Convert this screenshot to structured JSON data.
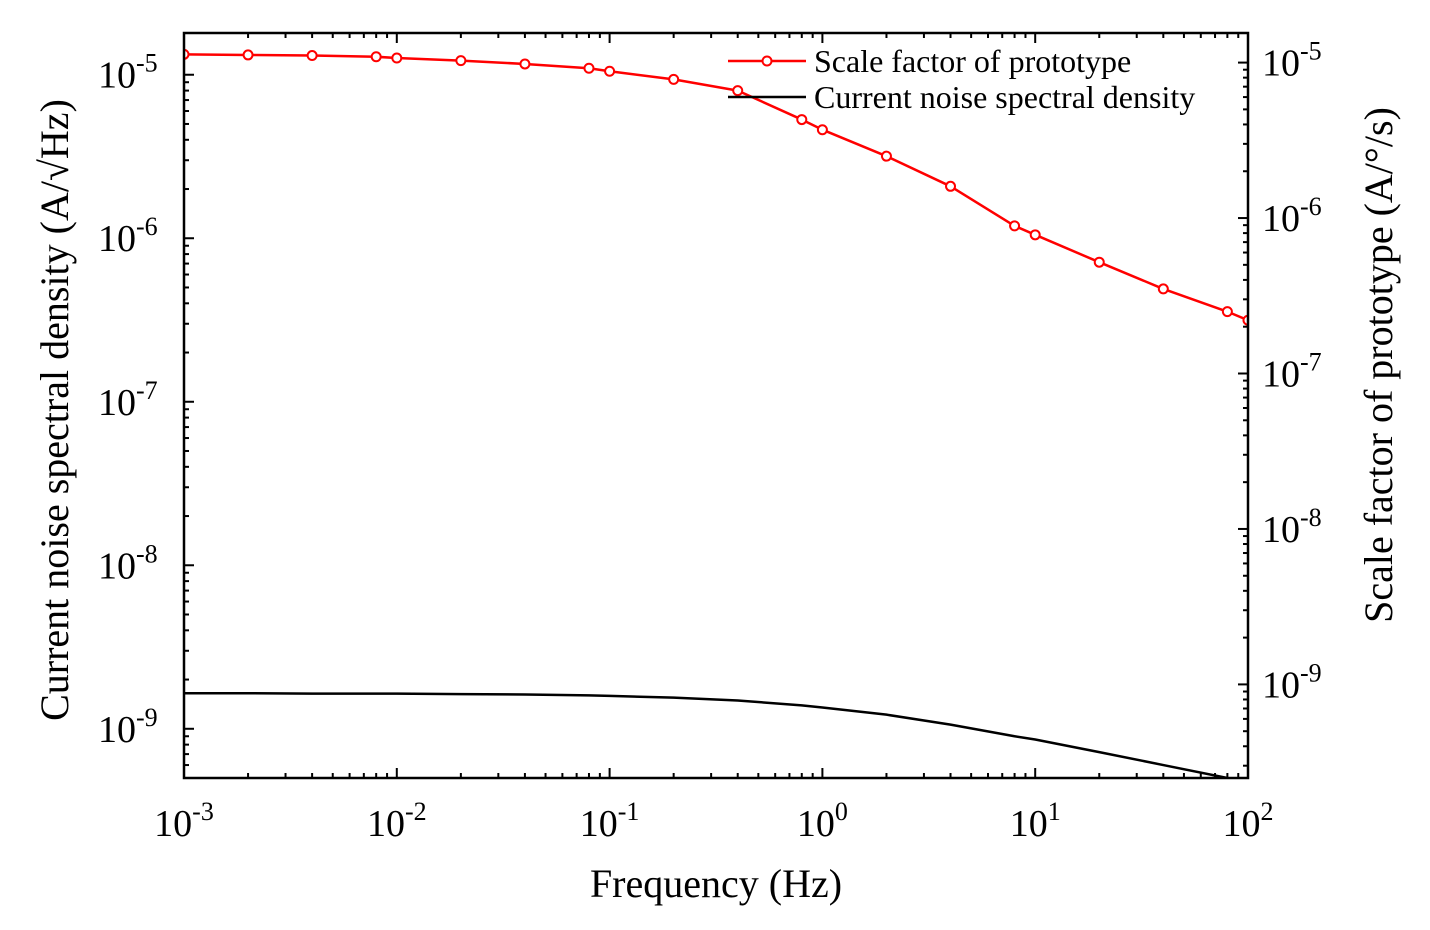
{
  "chart_data": {
    "type": "line",
    "title": "",
    "xlabel": "Frequency (Hz)",
    "ylabel_left": "Current noise spectral density (A/√Hz)",
    "ylabel_right": "Scale factor of prototype (A/°/s)",
    "x_scale": "log",
    "xlim": [
      0.001,
      100
    ],
    "ylim_left": [
      5e-10,
      1.8e-05
    ],
    "ylim_right": [
      2.5e-10,
      1.55e-05
    ],
    "y_scale": "log",
    "x_ticks": [
      {
        "value": 0.001,
        "base": "10",
        "exp": "-3"
      },
      {
        "value": 0.01,
        "base": "10",
        "exp": "-2"
      },
      {
        "value": 0.1,
        "base": "10",
        "exp": "-1"
      },
      {
        "value": 1,
        "base": "10",
        "exp": "0"
      },
      {
        "value": 10,
        "base": "10",
        "exp": "1"
      },
      {
        "value": 100,
        "base": "10",
        "exp": "2"
      }
    ],
    "y_ticks_left": [
      {
        "value": 1e-05,
        "base": "10",
        "exp": "-5"
      },
      {
        "value": 1e-06,
        "base": "10",
        "exp": "-6"
      },
      {
        "value": 1e-07,
        "base": "10",
        "exp": "-7"
      },
      {
        "value": 1e-08,
        "base": "10",
        "exp": "-8"
      },
      {
        "value": 1e-09,
        "base": "10",
        "exp": "-9"
      }
    ],
    "y_ticks_right": [
      {
        "value": 1e-05,
        "base": "10",
        "exp": "-5"
      },
      {
        "value": 1e-06,
        "base": "10",
        "exp": "-6"
      },
      {
        "value": 1e-07,
        "base": "10",
        "exp": "-7"
      },
      {
        "value": 1e-08,
        "base": "10",
        "exp": "-8"
      },
      {
        "value": 1e-09,
        "base": "10",
        "exp": "-9"
      }
    ],
    "legend_position": "top-right",
    "series": [
      {
        "name": "Scale factor of prototype",
        "axis": "right",
        "color": "#ff0000",
        "marker": "open-circle",
        "x": [
          0.001,
          0.002,
          0.004,
          0.008,
          0.01,
          0.02,
          0.04,
          0.08,
          0.1,
          0.2,
          0.4,
          0.8,
          1,
          2,
          4,
          8,
          10,
          20,
          40,
          80,
          100
        ],
        "y": [
          1.13e-05,
          1.12e-05,
          1.11e-05,
          1.09e-05,
          1.07e-05,
          1.03e-05,
          9.8e-06,
          9.2e-06,
          8.8e-06,
          7.8e-06,
          6.6e-06,
          4.3e-06,
          3.7e-06,
          2.5e-06,
          1.6e-06,
          8.9e-07,
          7.8e-07,
          5.2e-07,
          3.5e-07,
          2.5e-07,
          2.2e-07
        ]
      },
      {
        "name": "Current noise spectral density",
        "axis": "left",
        "color": "#000000",
        "marker": "none",
        "x": [
          0.001,
          0.002,
          0.004,
          0.008,
          0.01,
          0.02,
          0.04,
          0.08,
          0.1,
          0.2,
          0.4,
          0.8,
          1,
          2,
          4,
          8,
          10,
          20,
          40,
          80,
          100
        ],
        "y": [
          1.65e-09,
          1.65e-09,
          1.64e-09,
          1.64e-09,
          1.64e-09,
          1.63e-09,
          1.62e-09,
          1.6e-09,
          1.59e-09,
          1.55e-09,
          1.49e-09,
          1.39e-09,
          1.35e-09,
          1.22e-09,
          1.06e-09,
          9e-10,
          8.6e-10,
          7.2e-10,
          6e-10,
          5e-10,
          4.6e-10
        ]
      }
    ]
  }
}
